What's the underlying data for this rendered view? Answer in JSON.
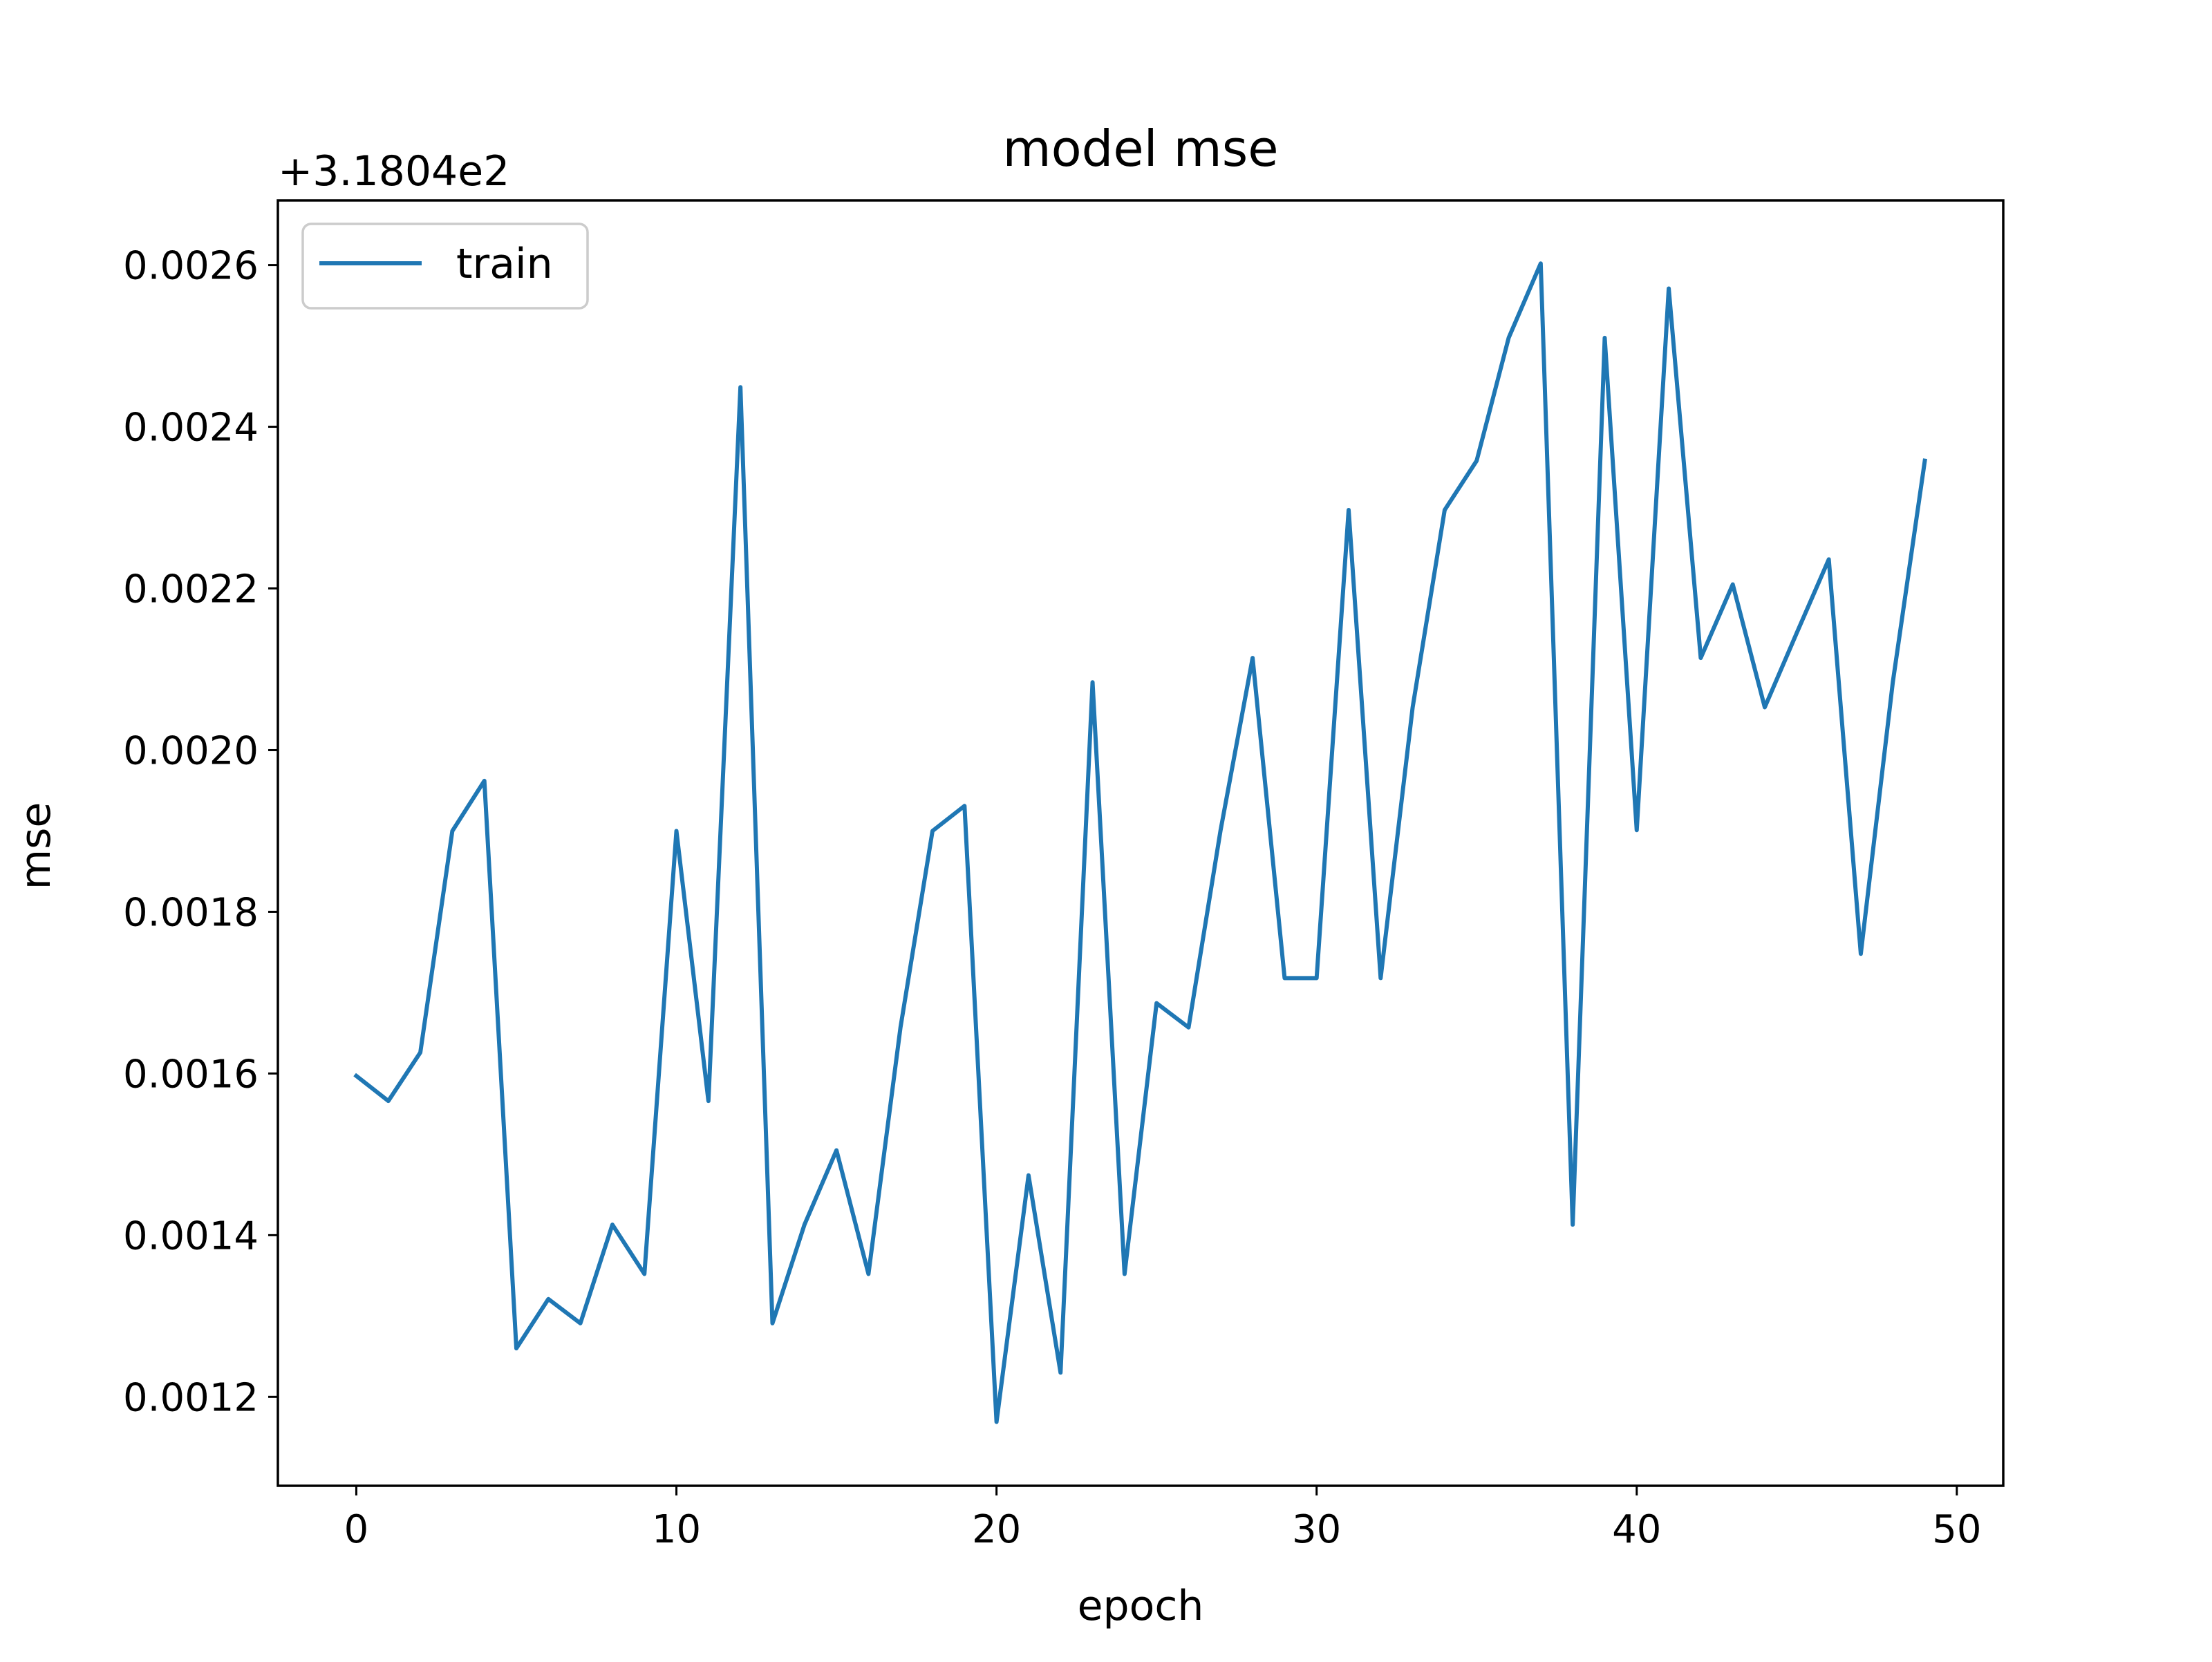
{
  "chart_data": {
    "type": "line",
    "title": "model mse",
    "xlabel": "epoch",
    "ylabel": "mse",
    "y_offset_label": "+3.1804e2",
    "xlim": [
      -2.45,
      51.45
    ],
    "ylim": [
      0.00109,
      0.00268
    ],
    "x_ticks": [
      0,
      10,
      20,
      30,
      40,
      50
    ],
    "x_tick_labels": [
      "0",
      "10",
      "20",
      "30",
      "40",
      "50"
    ],
    "y_ticks": [
      0.0012,
      0.0014,
      0.0016,
      0.0018,
      0.002,
      0.0022,
      0.0024,
      0.0026
    ],
    "y_tick_labels": [
      "0.0012",
      "0.0014",
      "0.0016",
      "0.0018",
      "0.0020",
      "0.0022",
      "0.0024",
      "0.0026"
    ],
    "grid": false,
    "legend_position": "top-left",
    "series": [
      {
        "name": "train",
        "color": "#1f77b4",
        "x": [
          0,
          1,
          2,
          3,
          4,
          5,
          6,
          7,
          8,
          9,
          10,
          11,
          12,
          13,
          14,
          15,
          16,
          17,
          18,
          19,
          20,
          21,
          22,
          23,
          24,
          25,
          26,
          27,
          28,
          29,
          30,
          31,
          32,
          33,
          34,
          35,
          36,
          37,
          38,
          39,
          40,
          41,
          42,
          43,
          44,
          45,
          46,
          47,
          48,
          49
        ],
        "values": [
          0.001597,
          0.001566,
          0.001626,
          0.0019,
          0.001962,
          0.00126,
          0.001321,
          0.001291,
          0.001413,
          0.001352,
          0.0019,
          0.001566,
          0.002449,
          0.001291,
          0.001413,
          0.001505,
          0.001352,
          0.001657,
          0.0019,
          0.001931,
          0.001169,
          0.001474,
          0.00123,
          0.002084,
          0.001352,
          0.001687,
          0.001657,
          0.001901,
          0.002114,
          0.001718,
          0.001718,
          0.002297,
          0.001718,
          0.002053,
          0.002297,
          0.002358,
          0.00251,
          0.002602,
          0.001413,
          0.00251,
          0.001901,
          0.002571,
          0.002114,
          0.002205,
          0.002053,
          0.002145,
          0.002236,
          0.001748,
          0.002084,
          0.002358
        ]
      }
    ]
  }
}
